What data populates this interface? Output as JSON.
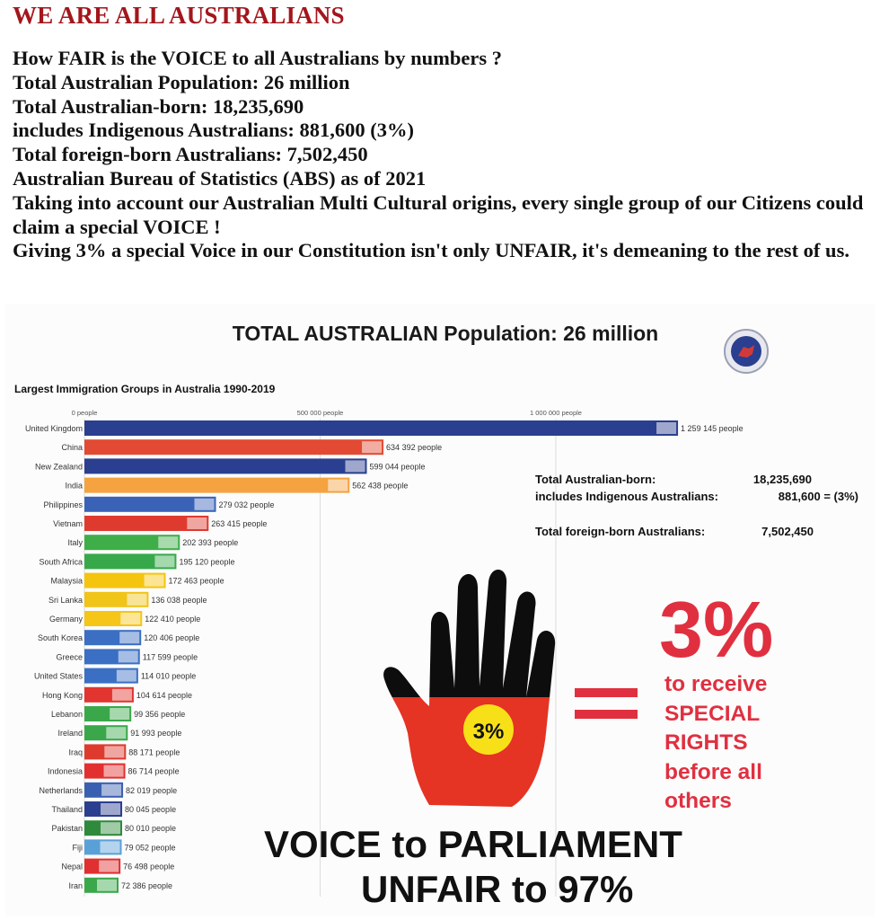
{
  "header": {
    "title": "WE ARE ALL AUSTRALIANS",
    "lines": [
      "How FAIR is the VOICE to all Australians by numbers ?",
      "Total Australian Population: 26 million",
      "Total Australian-born: 18,235,690",
      "includes Indigenous Australians: 881,600 (3%)",
      "Total foreign-born Australians: 7,502,450",
      "Australian Bureau of Statistics (ABS) as of 2021",
      "Taking into account our Australian Multi Cultural origins, every single group of our Citizens could claim a special VOICE !",
      "Giving 3% a special Voice in our Constitution isn't only UNFAIR, it's demeaning to the rest of us."
    ]
  },
  "infographic": {
    "title": "TOTAL AUSTRALIAN Population: 26 million",
    "stats": [
      {
        "label": "Total Australian-born:",
        "value": "18,235,690"
      },
      {
        "label": "includes Indigenous Australians:",
        "value": "881,600 = (3%)"
      },
      {
        "label": "Total foreign-born Australians:",
        "value": "7,502,450"
      }
    ],
    "hand_label": "3%",
    "big_percent": "3%",
    "rights_lines": [
      "to receive",
      "SPECIAL",
      "RIGHTS",
      "before all",
      "others"
    ],
    "voice_line1": "VOICE to PARLIAMENT",
    "voice_line2": "UNFAIR to 97%",
    "colors": {
      "heading_red": "#a3161c",
      "accent_red": "#e03040"
    }
  },
  "chart_data": {
    "type": "bar",
    "orientation": "horizontal",
    "title": "Largest Immigration Groups in Australia 1990-2019",
    "xlim": [
      0,
      1300000
    ],
    "x_ticks": [
      {
        "value": 0,
        "label": "0 people"
      },
      {
        "value": 500000,
        "label": "500 000 people"
      },
      {
        "value": 1000000,
        "label": "1 000 000 people"
      }
    ],
    "value_suffix": " people",
    "categories": [
      "United Kingdom",
      "China",
      "New Zealand",
      "India",
      "Philippines",
      "Vietnam",
      "Italy",
      "South Africa",
      "Malaysia",
      "Sri Lanka",
      "Germany",
      "South Korea",
      "Greece",
      "United States",
      "Hong Kong",
      "Lebanon",
      "Ireland",
      "Iraq",
      "Indonesia",
      "Netherlands",
      "Thailand",
      "Pakistan",
      "Fiji",
      "Nepal",
      "Iran"
    ],
    "values": [
      1259145,
      634392,
      599044,
      562438,
      279032,
      263415,
      202393,
      195120,
      172463,
      136038,
      122410,
      120406,
      117599,
      114010,
      104614,
      99356,
      91993,
      88171,
      86714,
      82019,
      80045,
      80010,
      79052,
      76498,
      72386
    ],
    "value_labels": [
      "1 259 145 people",
      "634 392 people",
      "599 044 people",
      "562 438 people",
      "279 032 people",
      "263 415 people",
      "202 393 people",
      "195 120 people",
      "172 463 people",
      "136 038 people",
      "122 410 people",
      "120 406 people",
      "117 599 people",
      "114 010 people",
      "104 614 people",
      "99 356 people",
      "91 993 people",
      "88 171 people",
      "86 714 people",
      "82 019 people",
      "80 045 people",
      "80 010 people",
      "79 052 people",
      "76 498 people",
      "72 386 people"
    ],
    "bar_colors": [
      "#2a3f8f",
      "#e24a33",
      "#2a3f8f",
      "#f4a340",
      "#3a63b8",
      "#de3b2e",
      "#3fae49",
      "#37a94a",
      "#f5c40f",
      "#f0c419",
      "#f5c518",
      "#3a6fc4",
      "#3a6fc4",
      "#3a6fc4",
      "#e2352f",
      "#3aa84a",
      "#3aa84a",
      "#de3b2e",
      "#e23030",
      "#3a5fb0",
      "#2a3f8f",
      "#2f8a3c",
      "#5aa0d8",
      "#e03030",
      "#3aa84a"
    ]
  }
}
